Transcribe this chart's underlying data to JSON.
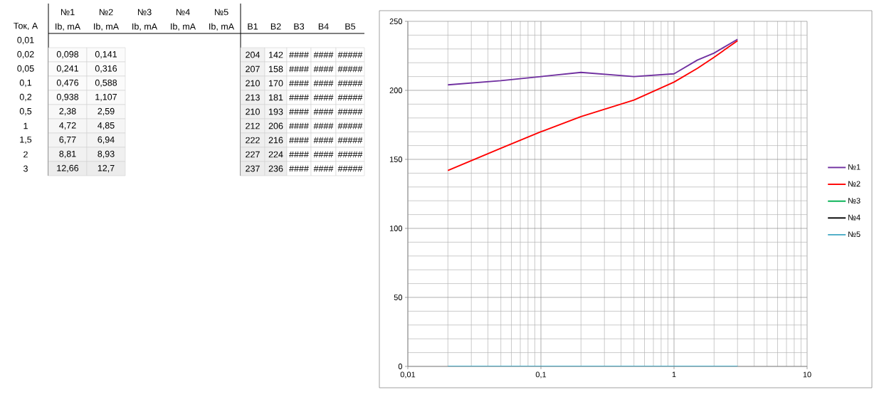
{
  "chart_data": [
    {
      "type": "heatmap",
      "ylabel": "Ток, A",
      "annotations": [
        "№1",
        "№2",
        "№3",
        "№4",
        "№5"
      ],
      "categories": [
        "Ib, mA",
        "Ib, mA",
        "Ib, mA",
        "Ib, mA",
        "Ib, mA"
      ],
      "y_categories": [
        "0,01",
        "0,02",
        "0,05",
        "0,1",
        "0,2",
        "0,5",
        "1",
        "1,5",
        "2",
        "3"
      ],
      "cells": [
        [
          null,
          null,
          null,
          null,
          null
        ],
        [
          0.098,
          0.141,
          null,
          null,
          null
        ],
        [
          0.241,
          0.316,
          null,
          null,
          null
        ],
        [
          0.476,
          0.588,
          null,
          null,
          null
        ],
        [
          0.938,
          1.107,
          null,
          null,
          null
        ],
        [
          2.38,
          2.59,
          null,
          null,
          null
        ],
        [
          4.72,
          4.85,
          null,
          null,
          null
        ],
        [
          6.77,
          6.94,
          null,
          null,
          null
        ],
        [
          8.81,
          8.93,
          null,
          null,
          null
        ],
        [
          12.66,
          12.7,
          null,
          null,
          null
        ]
      ],
      "cell_labels": [
        [
          null,
          null,
          null,
          null,
          null
        ],
        [
          "0,098",
          "0,141",
          null,
          null,
          null
        ],
        [
          "0,241",
          "0,316",
          null,
          null,
          null
        ],
        [
          "0,476",
          "0,588",
          null,
          null,
          null
        ],
        [
          "0,938",
          "1,107",
          null,
          null,
          null
        ],
        [
          "2,38",
          "2,59",
          null,
          null,
          null
        ],
        [
          "4,72",
          "4,85",
          null,
          null,
          null
        ],
        [
          "6,77",
          "6,94",
          null,
          null,
          null
        ],
        [
          "8,81",
          "8,93",
          null,
          null,
          null
        ],
        [
          "12,66",
          "12,7",
          null,
          null,
          null
        ]
      ]
    },
    {
      "type": "heatmap",
      "tick_labels": "x",
      "categories": [
        "B1",
        "B2",
        "B3",
        "B4",
        "B5"
      ],
      "y_categories": [
        "0,01",
        "0,02",
        "0,05",
        "0,1",
        "0,2",
        "0,5",
        "1",
        "1,5",
        "2",
        "3"
      ],
      "cells": [
        [
          null,
          null,
          null,
          null,
          null
        ],
        [
          204,
          142,
          null,
          null,
          null
        ],
        [
          207,
          158,
          null,
          null,
          null
        ],
        [
          210,
          170,
          null,
          null,
          null
        ],
        [
          213,
          181,
          null,
          null,
          null
        ],
        [
          210,
          193,
          null,
          null,
          null
        ],
        [
          212,
          206,
          null,
          null,
          null
        ],
        [
          222,
          216,
          null,
          null,
          null
        ],
        [
          227,
          224,
          null,
          null,
          null
        ],
        [
          237,
          236,
          null,
          null,
          null
        ]
      ],
      "cell_labels": [
        [
          null,
          null,
          null,
          null,
          null
        ],
        [
          "204",
          "142",
          "####",
          "####",
          "#####"
        ],
        [
          "207",
          "158",
          "####",
          "####",
          "#####"
        ],
        [
          "210",
          "170",
          "####",
          "####",
          "#####"
        ],
        [
          "213",
          "181",
          "####",
          "####",
          "#####"
        ],
        [
          "210",
          "193",
          "####",
          "####",
          "#####"
        ],
        [
          "212",
          "206",
          "####",
          "####",
          "#####"
        ],
        [
          "222",
          "216",
          "####",
          "####",
          "#####"
        ],
        [
          "227",
          "224",
          "####",
          "####",
          "#####"
        ],
        [
          "237",
          "236",
          "####",
          "####",
          "#####"
        ]
      ]
    },
    {
      "type": "line",
      "x": [
        0.02,
        0.05,
        0.1,
        0.2,
        0.5,
        1,
        1.5,
        2,
        3
      ],
      "series": [
        {
          "name": "№1",
          "color": "#7030a0",
          "values": [
            204,
            207,
            210,
            213,
            210,
            212,
            222,
            227,
            237
          ]
        },
        {
          "name": "№2",
          "color": "#ff0000",
          "values": [
            142,
            158,
            170,
            181,
            193,
            206,
            216,
            224,
            236
          ]
        },
        {
          "name": "№3",
          "color": "#00b050",
          "values": [
            null,
            null,
            null,
            null,
            null,
            null,
            null,
            null,
            null
          ]
        },
        {
          "name": "№4",
          "color": "#000000",
          "values": [
            null,
            null,
            null,
            null,
            null,
            null,
            null,
            null,
            null
          ]
        },
        {
          "name": "№5",
          "color": "#4bacc6",
          "values": [
            0,
            0,
            0,
            0,
            0,
            0,
            0,
            0,
            0
          ]
        }
      ],
      "xlim": [
        0.01,
        10
      ],
      "xticks": [
        {
          "value": 0.01,
          "label": "0,01"
        },
        {
          "value": 0.1,
          "label": "0,1"
        },
        1,
        10
      ],
      "ylim": [
        0,
        250
      ],
      "yticks": [
        0,
        50,
        100,
        150,
        200,
        250
      ],
      "log": "x",
      "grid": true,
      "legend": "right"
    }
  ]
}
